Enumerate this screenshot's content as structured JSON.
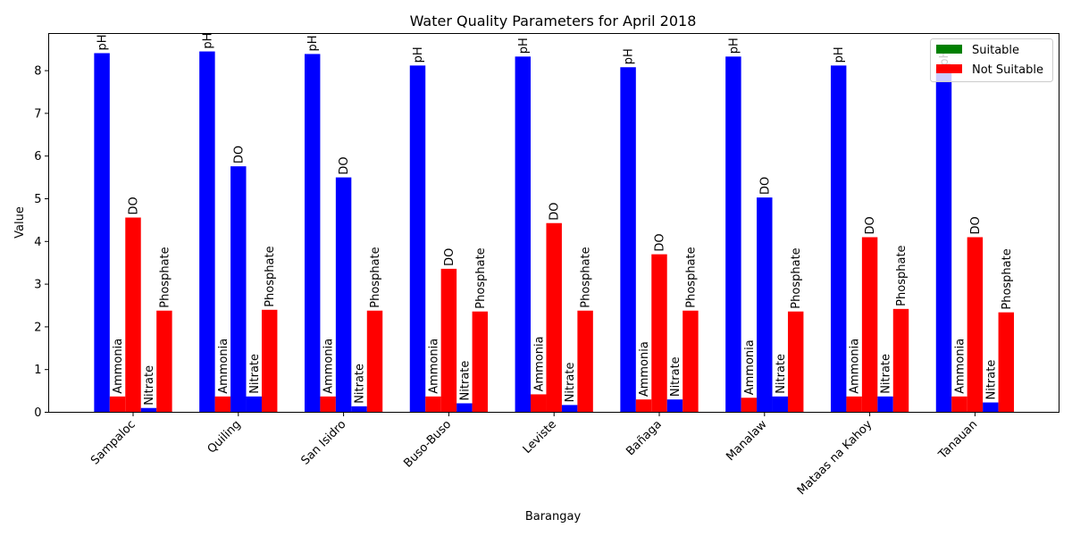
{
  "chart_data": {
    "type": "bar",
    "title": "Water Quality Parameters for April 2018",
    "xlabel": "Barangay",
    "ylabel": "Value",
    "ylim": [
      0,
      8.87
    ],
    "yticks": [
      "0",
      "1",
      "2",
      "3",
      "4",
      "5",
      "6",
      "7",
      "8"
    ],
    "categories": [
      "Sampaloc",
      "Quiling",
      "San Isidro",
      "Buso-Buso",
      "Leviste",
      "Bañaga",
      "Manalaw",
      "Mataas na Kahoy",
      "Tanauan"
    ],
    "parameters": [
      "pH",
      "Ammonia",
      "DO",
      "Nitrate",
      "Phosphate"
    ],
    "values": [
      [
        8.41,
        0.37,
        4.56,
        0.1,
        2.38
      ],
      [
        8.45,
        0.37,
        5.76,
        0.37,
        2.4
      ],
      [
        8.39,
        0.37,
        5.5,
        0.14,
        2.38
      ],
      [
        8.12,
        0.37,
        3.36,
        0.21,
        2.36
      ],
      [
        8.33,
        0.42,
        4.43,
        0.17,
        2.38
      ],
      [
        8.08,
        0.3,
        3.7,
        0.3,
        2.38
      ],
      [
        8.33,
        0.34,
        5.03,
        0.37,
        2.36
      ],
      [
        8.12,
        0.37,
        4.1,
        0.37,
        2.42
      ],
      [
        8.05,
        0.37,
        4.1,
        0.23,
        2.34
      ]
    ],
    "bar_colors": [
      [
        "#0000ff",
        "#ff0000",
        "#ff0000",
        "#0000ff",
        "#ff0000"
      ],
      [
        "#0000ff",
        "#ff0000",
        "#0000ff",
        "#0000ff",
        "#ff0000"
      ],
      [
        "#0000ff",
        "#ff0000",
        "#0000ff",
        "#0000ff",
        "#ff0000"
      ],
      [
        "#0000ff",
        "#ff0000",
        "#ff0000",
        "#0000ff",
        "#ff0000"
      ],
      [
        "#0000ff",
        "#ff0000",
        "#ff0000",
        "#0000ff",
        "#ff0000"
      ],
      [
        "#0000ff",
        "#ff0000",
        "#ff0000",
        "#0000ff",
        "#ff0000"
      ],
      [
        "#0000ff",
        "#ff0000",
        "#0000ff",
        "#0000ff",
        "#ff0000"
      ],
      [
        "#0000ff",
        "#ff0000",
        "#ff0000",
        "#0000ff",
        "#ff0000"
      ],
      [
        "#0000ff",
        "#ff0000",
        "#ff0000",
        "#0000ff",
        "#ff0000"
      ]
    ],
    "legend": {
      "placement": "top-right",
      "entries": [
        {
          "label": "Suitable",
          "color": "#008000"
        },
        {
          "label": "Not Suitable",
          "color": "#ff0000"
        }
      ]
    },
    "grid": false
  }
}
